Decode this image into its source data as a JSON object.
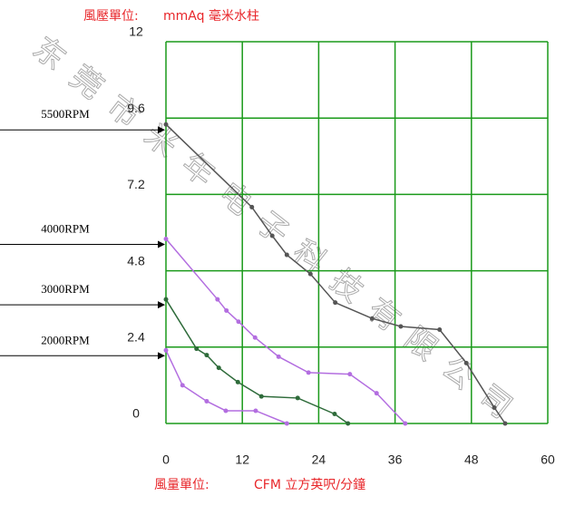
{
  "chart_data": {
    "type": "line",
    "ylabel": {
      "name": "風壓單位:",
      "unit": "mmAq 毫米水柱"
    },
    "xlabel": {
      "name": "風量單位:",
      "unit": "CFM 立方英呎/分鐘"
    },
    "watermark": "东莞市米年电子科技有限公司",
    "xlim": [
      0,
      60
    ],
    "xticks": [
      0,
      12,
      24,
      36,
      48,
      60
    ],
    "ylim": [
      0,
      12
    ],
    "yticks": [
      0,
      2.4,
      4.8,
      7.2,
      9.6,
      12
    ],
    "grid": true,
    "grid_color": "#1a9a1a",
    "series": [
      {
        "name": "5500RPM",
        "color": "#555555",
        "x": [
          0,
          13.5,
          16.7,
          19,
          22.7,
          26.6,
          32.4,
          36.9,
          43,
          47.2,
          51.6,
          53.3
        ],
        "values": [
          9.4,
          6.8,
          5.9,
          5.3,
          4.7,
          3.8,
          3.3,
          3.05,
          2.95,
          1.9,
          0.5,
          0
        ]
      },
      {
        "name": "4000RPM",
        "color": "#b36ee0",
        "x": [
          0,
          8.1,
          9.5,
          11.4,
          14,
          17.7,
          22.4,
          28.9,
          33.1,
          37.6
        ],
        "values": [
          5.8,
          3.9,
          3.55,
          3.2,
          2.7,
          2.1,
          1.6,
          1.55,
          0.95,
          0
        ]
      },
      {
        "name": "3000RPM",
        "color": "#2e6b3a",
        "x": [
          0,
          4.8,
          6.4,
          8.3,
          11.3,
          15,
          20.7,
          26.5,
          28.6
        ],
        "values": [
          3.9,
          2.35,
          2.15,
          1.75,
          1.3,
          0.85,
          0.8,
          0.3,
          0
        ]
      },
      {
        "name": "2000RPM",
        "color": "#b36ee0",
        "x": [
          0,
          2.6,
          6.4,
          9.4,
          14.1,
          19
        ],
        "values": [
          2.3,
          1.2,
          0.7,
          0.4,
          0.4,
          0
        ]
      }
    ]
  }
}
